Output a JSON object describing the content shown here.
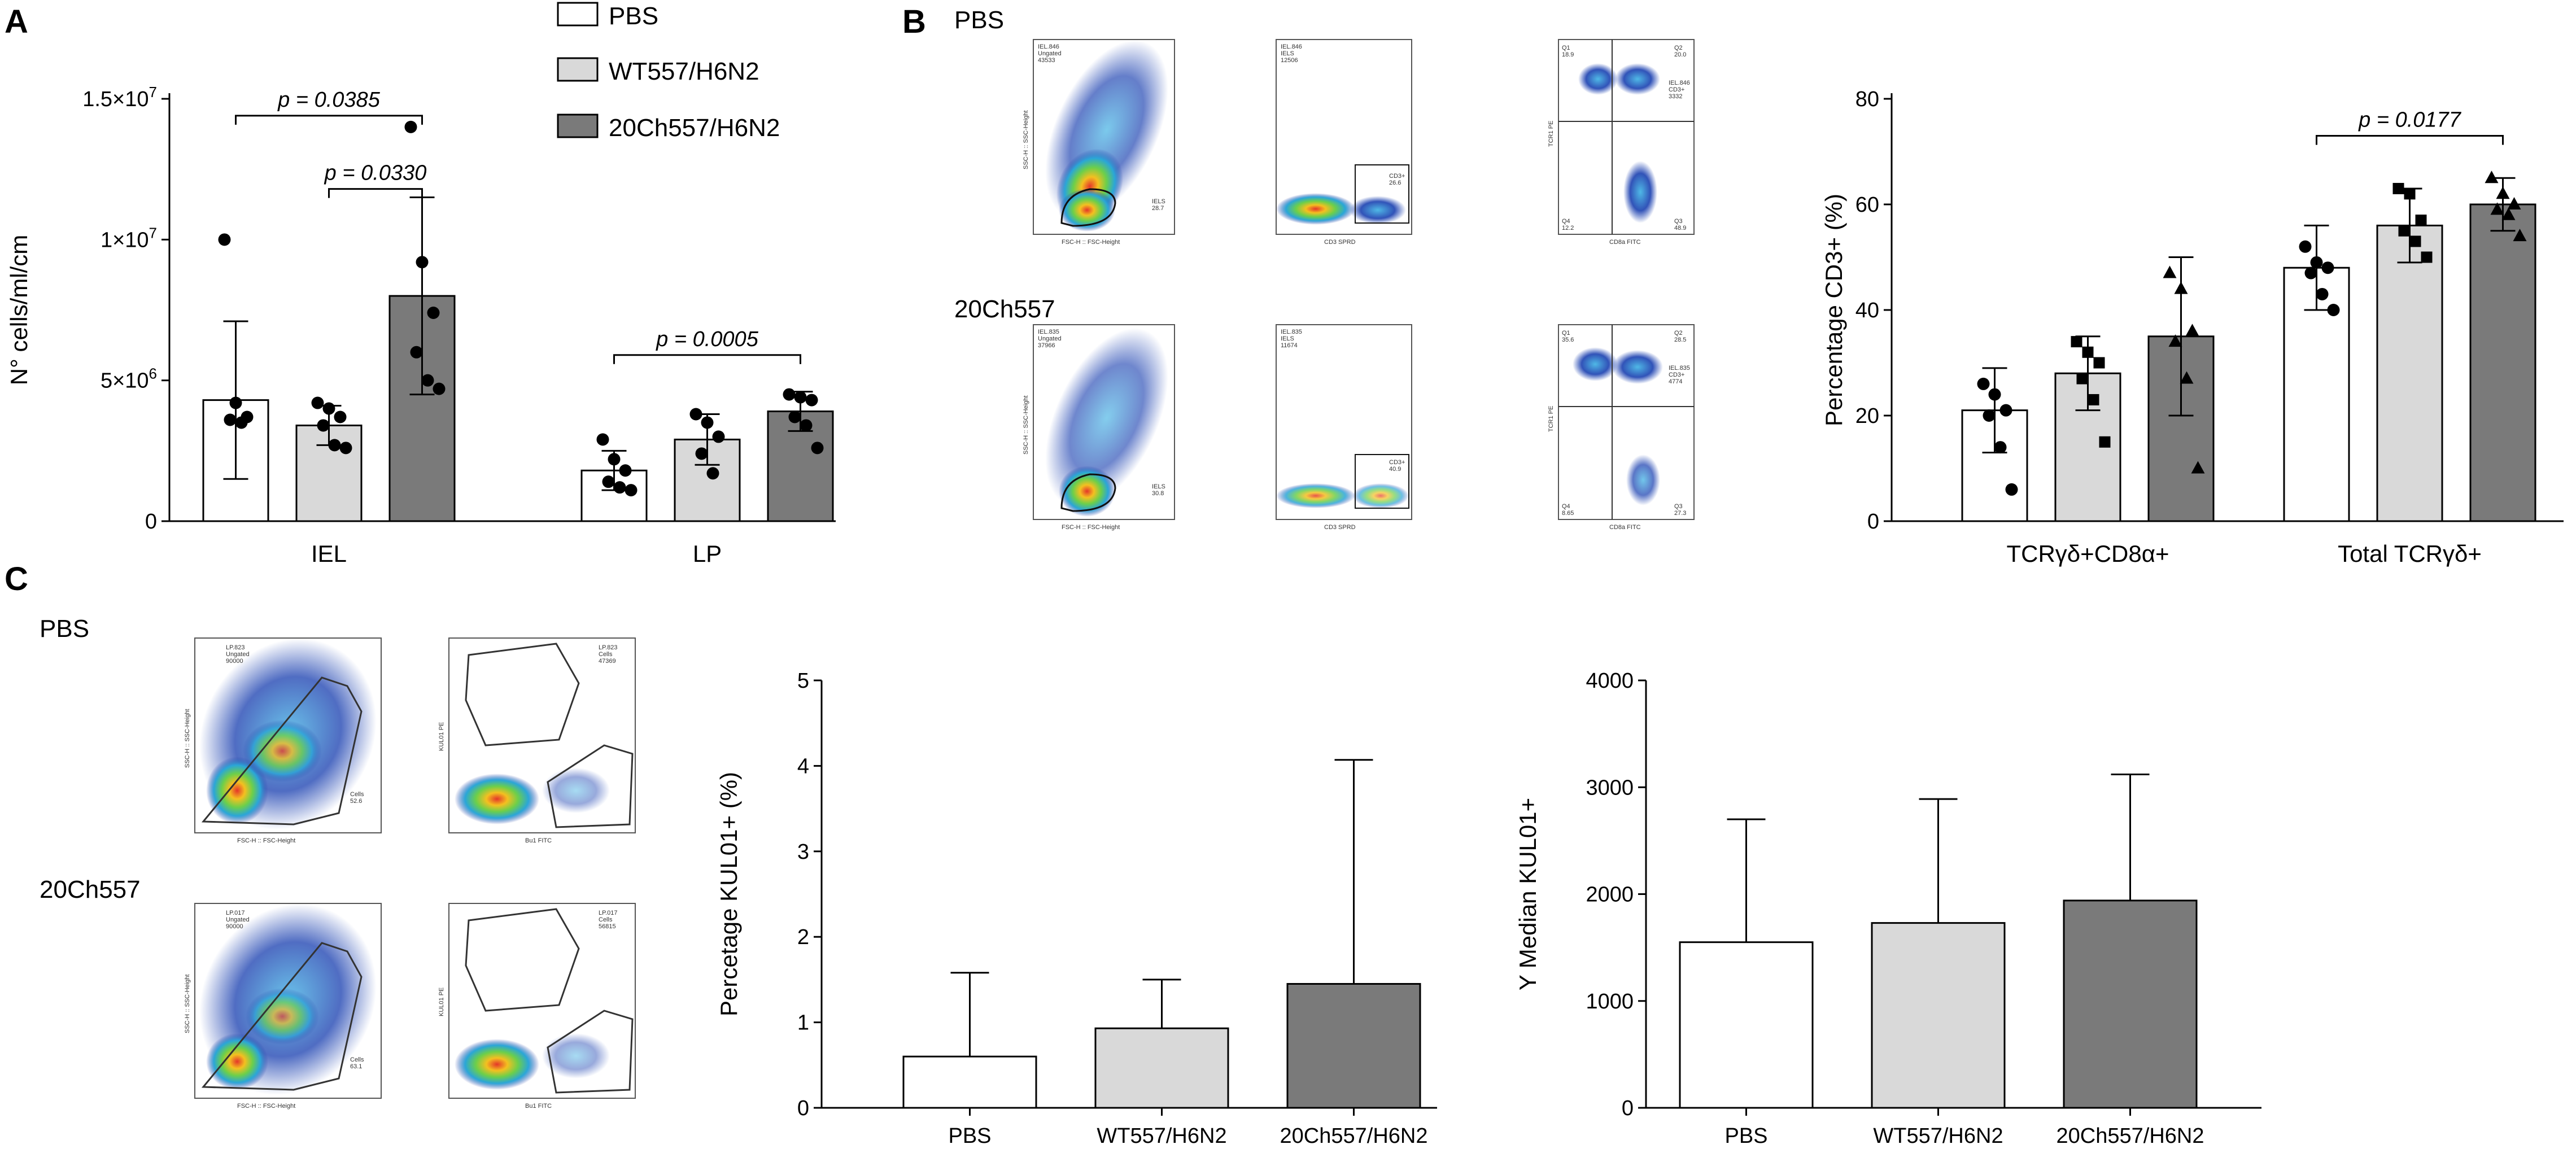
{
  "panels": {
    "a_letter": "A",
    "b_letter": "B",
    "c_letter": "C"
  },
  "legend": {
    "items": [
      {
        "label": "PBS",
        "color": "#ffffff"
      },
      {
        "label": "WT557/H6N2",
        "color": "#d9d9d9"
      },
      {
        "label": "20Ch557/H6N2",
        "color": "#7a7a7a"
      }
    ]
  },
  "flow_labels": {
    "b_top": "PBS",
    "b_bottom": "20Ch557",
    "c_top": "PBS",
    "c_bottom": "20Ch557"
  },
  "chart_data": [
    {
      "id": "A",
      "type": "bar",
      "ylabel": "N° cells/ml/cm",
      "ylim": [
        0,
        15000000
      ],
      "yticks": [
        0,
        5000000,
        10000000,
        15000000
      ],
      "ytick_labels": [
        "0",
        "5×10^6",
        "1×10^7",
        "1.5×10^7"
      ],
      "categories": [
        "IEL",
        "LP"
      ],
      "series": [
        {
          "name": "PBS",
          "color": "#ffffff",
          "values": [
            4300000,
            1800000
          ],
          "sd": [
            2800000,
            700000
          ],
          "points": [
            [
              10000000,
              4200000,
              3700000,
              3600000,
              3500000
            ],
            [
              2900000,
              2200000,
              1800000,
              1400000,
              1200000,
              1100000
            ]
          ]
        },
        {
          "name": "WT557/H6N2",
          "color": "#d9d9d9",
          "values": [
            3400000,
            2900000
          ],
          "sd": [
            700000,
            900000
          ],
          "points": [
            [
              4200000,
              4000000,
              3700000,
              3400000,
              2700000,
              2600000
            ],
            [
              3800000,
              3500000,
              3000000,
              2400000,
              1700000
            ]
          ]
        },
        {
          "name": "20Ch557/H6N2",
          "color": "#7a7a7a",
          "values": [
            8000000,
            3900000
          ],
          "sd": [
            3500000,
            700000
          ],
          "points": [
            [
              14000000,
              9200000,
              7400000,
              6000000,
              5000000,
              4700000
            ],
            [
              4500000,
              4400000,
              4300000,
              3700000,
              3400000,
              2600000
            ]
          ]
        }
      ],
      "annotations": [
        {
          "text": "p = 0.0385",
          "from": [
            0,
            0
          ],
          "to": [
            0,
            2
          ],
          "y": 14400000
        },
        {
          "text": "p = 0.0330",
          "from": [
            0,
            1
          ],
          "to": [
            0,
            2
          ],
          "y": 11800000
        },
        {
          "text": "p = 0.0005",
          "from": [
            1,
            0
          ],
          "to": [
            1,
            2
          ],
          "y": 5900000
        }
      ]
    },
    {
      "id": "B",
      "type": "bar",
      "ylabel": "Percentage CD3+ (%)",
      "ylim": [
        0,
        80
      ],
      "yticks": [
        0,
        20,
        40,
        60,
        80
      ],
      "ytick_labels": [
        "0",
        "20",
        "40",
        "60",
        "80"
      ],
      "categories": [
        "TCRγδ+CD8α+",
        "Total TCRγδ+"
      ],
      "series": [
        {
          "name": "PBS",
          "color": "#ffffff",
          "values": [
            21,
            48
          ],
          "sd": [
            8,
            8
          ],
          "points": [
            [
              26,
              24,
              21,
              20,
              14,
              6
            ],
            [
              52,
              49,
              48,
              47,
              43,
              40
            ]
          ]
        },
        {
          "name": "WT557/H6N2",
          "color": "#d9d9d9",
          "values": [
            28,
            56
          ],
          "sd": [
            7,
            7
          ],
          "points": [
            [
              34,
              32,
              30,
              27,
              23,
              15
            ],
            [
              63,
              62,
              57,
              55,
              53,
              50
            ]
          ]
        },
        {
          "name": "20Ch557/H6N2",
          "color": "#7a7a7a",
          "values": [
            35,
            60
          ],
          "sd": [
            15,
            5
          ],
          "points": [
            [
              47,
              44,
              36,
              34,
              27,
              10
            ],
            [
              65,
              62,
              60,
              59,
              58,
              54
            ]
          ]
        }
      ],
      "annotations": [
        {
          "text": "p = 0.0177",
          "from": [
            1,
            0
          ],
          "to": [
            1,
            2
          ],
          "y": 73
        }
      ]
    },
    {
      "id": "C1",
      "type": "bar",
      "ylabel": "Percetage KUL01+ (%)",
      "ylim": [
        0,
        5
      ],
      "yticks": [
        0,
        1,
        2,
        3,
        4,
        5
      ],
      "ytick_labels": [
        "0",
        "1",
        "2",
        "3",
        "4",
        "5"
      ],
      "categories": [
        "PBS",
        "WT557/H6N2",
        "20Ch557/H6N2"
      ],
      "values": [
        0.6,
        0.93,
        1.45
      ],
      "sd": [
        0.98,
        0.57,
        2.62
      ],
      "colors": [
        "#ffffff",
        "#d9d9d9",
        "#7a7a7a"
      ]
    },
    {
      "id": "C2",
      "type": "bar",
      "ylabel": "Y Median KUL01+",
      "ylim": [
        0,
        4000
      ],
      "yticks": [
        0,
        1000,
        2000,
        3000,
        4000
      ],
      "ytick_labels": [
        "0",
        "1000",
        "2000",
        "3000",
        "4000"
      ],
      "categories": [
        "PBS",
        "WT557/H6N2",
        "20Ch557/H6N2"
      ],
      "values": [
        1550,
        1730,
        1940
      ],
      "sd": [
        1150,
        1160,
        1180
      ],
      "colors": [
        "#ffffff",
        "#d9d9d9",
        "#7a7a7a"
      ]
    }
  ],
  "flow_text": {
    "b_pbs": {
      "p1": "IEL.846\nUngated\n43533",
      "p1_gate": "IELS\n28.7",
      "p2": "IEL.846\nIELS\n12506",
      "p2_gate": "CD3+\n26.6",
      "p3_q1": "Q1\n18.9",
      "p3_q2": "Q2\n20.0",
      "p3_info": "IEL.846\nCD3+\n3332",
      "p3_q4": "Q4\n12.2",
      "p3_q3": "Q3\n48.9",
      "x1": "FSC-H :: FSC-Height",
      "y1": "SSC-H :: SSC-Height",
      "x2": "CD3 SPRD",
      "y3": "TCR1 PE",
      "x3": "CD8a FITC"
    },
    "b_20ch": {
      "p1": "IEL.835\nUngated\n37966",
      "p1_gate": "IELS\n30.8",
      "p2": "IEL.835\nIELS\n11674",
      "p2_gate": "CD3+\n40.9",
      "p3_q1": "Q1\n35.6",
      "p3_q2": "Q2\n28.5",
      "p3_info": "IEL.835\nCD3+\n4774",
      "p3_q4": "Q4\n8.65",
      "p3_q3": "Q3\n27.3"
    },
    "c_pbs": {
      "p1": "LP.823\nUngated\n90000",
      "p1_gate": "Cells\n52.6",
      "p2": "LP.823\nCells\n47369",
      "y2": "KUL01 PE",
      "x2": "Bu1 FITC"
    },
    "c_20ch": {
      "p1": "LP.017\nUngated\n90000",
      "p1_gate": "Cells\n63.1",
      "p2": "LP.017\nCells\n56815"
    }
  }
}
